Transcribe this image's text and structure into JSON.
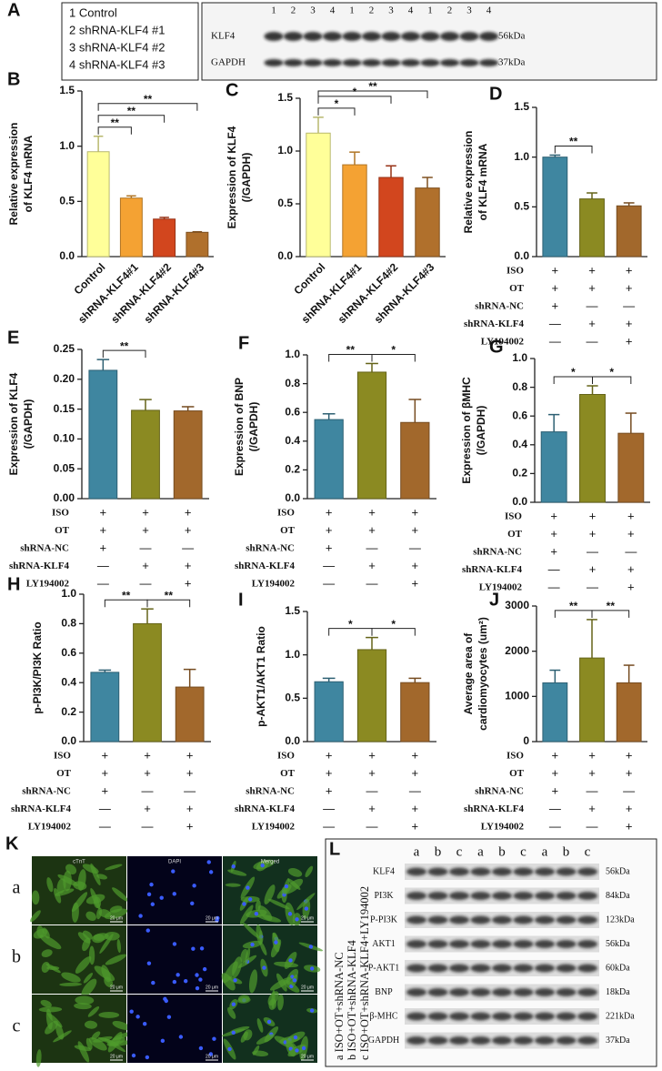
{
  "blot_a": {
    "panel_label": "A",
    "legend": [
      "1 Control",
      "2 shRNA-KLF4 #1",
      "3 shRNA-KLF4 #2",
      "4 shRNA-KLF4 #3"
    ],
    "lanes": [
      "1",
      "2",
      "3",
      "4",
      "1",
      "2",
      "3",
      "4",
      "1",
      "2",
      "3",
      "4"
    ],
    "rows": [
      {
        "name": "KLF4",
        "size": "56kDa"
      },
      {
        "name": "GAPDH",
        "size": "37kDa"
      }
    ]
  },
  "chart_data": [
    {
      "type": "bar",
      "panel_label": "B",
      "ylabel": [
        "Relative expression",
        "of KLF4 mRNA"
      ],
      "categories": [
        "Control",
        "shRNA-KLF4#1",
        "shRNA-KLF4#2",
        "shRNA-KLF4#3"
      ],
      "values": [
        0.95,
        0.53,
        0.34,
        0.22
      ],
      "errors": [
        0.14,
        0.02,
        0.015,
        0.005
      ],
      "colors": [
        "#ffff99",
        "#f4a233",
        "#d2461e",
        "#b0702c"
      ],
      "ylim": [
        0,
        1.5
      ],
      "yticks": [
        {
          "value": 0,
          "label": "0.0"
        },
        0.5,
        {
          "value": 1,
          "label": "1.0"
        },
        1.5
      ],
      "significance": [
        {
          "groups": [
            0,
            1
          ],
          "label": "**"
        },
        {
          "groups": [
            0,
            2
          ],
          "label": "**"
        },
        {
          "groups": [
            0,
            3
          ],
          "label": "**"
        }
      ]
    },
    {
      "type": "bar",
      "panel_label": "C",
      "ylabel": [
        "Expression of KLF4",
        "(/GAPDH)"
      ],
      "categories": [
        "Control",
        "shRNA-KLF4#1",
        "shRNA-KLF4#2",
        "shRNA-KLF4#3"
      ],
      "values": [
        1.17,
        0.87,
        0.75,
        0.65
      ],
      "errors": [
        0.15,
        0.12,
        0.11,
        0.1
      ],
      "colors": [
        "#ffff99",
        "#f4a233",
        "#d2461e",
        "#b0702c"
      ],
      "ylim": [
        0,
        1.5
      ],
      "yticks": [
        {
          "value": 0,
          "label": "0.0"
        },
        0.5,
        {
          "value": 1,
          "label": "1.0"
        },
        1.5
      ],
      "significance": [
        {
          "groups": [
            0,
            1
          ],
          "label": "*"
        },
        {
          "groups": [
            0,
            2
          ],
          "label": "*"
        },
        {
          "groups": [
            0,
            3
          ],
          "label": "**"
        }
      ]
    },
    {
      "type": "bar",
      "panel_label": "D",
      "ylabel": [
        "Relative expression",
        "of KLF4 mRNA"
      ],
      "values": [
        1.0,
        0.58,
        0.51
      ],
      "errors": [
        0.02,
        0.06,
        0.03
      ],
      "colors": [
        "#3f86a0",
        "#8b8a22",
        "#a2682c"
      ],
      "ylim": [
        0,
        1.5
      ],
      "yticks": [
        {
          "value": 0,
          "label": "0.0"
        },
        0.5,
        {
          "value": 1,
          "label": "1.0"
        },
        1.5
      ],
      "significance": [
        {
          "groups": [
            0,
            1
          ],
          "label": "**"
        }
      ],
      "treatments": [
        {
          "name": "ISO",
          "marks": [
            "+",
            "+",
            "+"
          ]
        },
        {
          "name": "OT",
          "marks": [
            "+",
            "+",
            "+"
          ]
        },
        {
          "name": "shRNA-NC",
          "marks": [
            "+",
            "—",
            "—"
          ]
        },
        {
          "name": "shRNA-KLF4",
          "marks": [
            "—",
            "+",
            "+"
          ]
        },
        {
          "name": "LY194002",
          "marks": [
            "—",
            "—",
            "+"
          ]
        }
      ]
    },
    {
      "type": "bar",
      "panel_label": "E",
      "ylabel": [
        "Expression of KLF4",
        "(/GAPDH)"
      ],
      "values": [
        0.215,
        0.148,
        0.147
      ],
      "errors": [
        0.018,
        0.018,
        0.007
      ],
      "colors": [
        "#3f86a0",
        "#8b8a22",
        "#a2682c"
      ],
      "ylim": [
        0,
        0.25
      ],
      "yticks": [
        {
          "value": 0,
          "label": "0.00"
        },
        0.05,
        {
          "value": 0.1,
          "label": "0.10"
        },
        0.15,
        {
          "value": 0.2,
          "label": "0.20"
        },
        0.25
      ],
      "significance": [
        {
          "groups": [
            0,
            1
          ],
          "label": "**"
        }
      ],
      "treatments": [
        {
          "name": "ISO",
          "marks": [
            "+",
            "+",
            "+"
          ]
        },
        {
          "name": "OT",
          "marks": [
            "+",
            "+",
            "+"
          ]
        },
        {
          "name": "shRNA-NC",
          "marks": [
            "+",
            "—",
            "—"
          ]
        },
        {
          "name": "shRNA-KLF4",
          "marks": [
            "—",
            "+",
            "+"
          ]
        },
        {
          "name": "LY194002",
          "marks": [
            "—",
            "—",
            "+"
          ]
        }
      ]
    },
    {
      "type": "bar",
      "panel_label": "F",
      "ylabel": [
        "Expression of BNP",
        "(/GAPDH)"
      ],
      "values": [
        0.55,
        0.88,
        0.53
      ],
      "errors": [
        0.04,
        0.06,
        0.16
      ],
      "colors": [
        "#3f86a0",
        "#8b8a22",
        "#a2682c"
      ],
      "ylim": [
        0,
        1
      ],
      "yticks": [
        {
          "value": 0,
          "label": "0.0"
        },
        0.2,
        0.4,
        0.6,
        0.8,
        {
          "value": 1,
          "label": "1.0"
        }
      ],
      "significance": [
        {
          "groups": [
            0,
            1
          ],
          "label": "**"
        },
        {
          "groups": [
            1,
            2
          ],
          "label": "*"
        }
      ],
      "treatments": [
        {
          "name": "ISO",
          "marks": [
            "+",
            "+",
            "+"
          ]
        },
        {
          "name": "OT",
          "marks": [
            "+",
            "+",
            "+"
          ]
        },
        {
          "name": "shRNA-NC",
          "marks": [
            "+",
            "—",
            "—"
          ]
        },
        {
          "name": "shRNA-KLF4",
          "marks": [
            "—",
            "+",
            "+"
          ]
        },
        {
          "name": "LY194002",
          "marks": [
            "—",
            "—",
            "+"
          ]
        }
      ]
    },
    {
      "type": "bar",
      "panel_label": "G",
      "ylabel": [
        "Expression of βMHC",
        "(/GAPDH)"
      ],
      "values": [
        0.49,
        0.75,
        0.48
      ],
      "errors": [
        0.12,
        0.06,
        0.14
      ],
      "colors": [
        "#3f86a0",
        "#8b8a22",
        "#a2682c"
      ],
      "ylim": [
        0,
        1
      ],
      "yticks": [
        {
          "value": 0,
          "label": "0.0"
        },
        0.2,
        0.4,
        0.6,
        0.8,
        {
          "value": 1,
          "label": "1.0"
        }
      ],
      "significance": [
        {
          "groups": [
            0,
            1
          ],
          "label": "*"
        },
        {
          "groups": [
            1,
            2
          ],
          "label": "*"
        }
      ],
      "treatments": [
        {
          "name": "ISO",
          "marks": [
            "+",
            "+",
            "+"
          ]
        },
        {
          "name": "OT",
          "marks": [
            "+",
            "+",
            "+"
          ]
        },
        {
          "name": "shRNA-NC",
          "marks": [
            "+",
            "—",
            "—"
          ]
        },
        {
          "name": "shRNA-KLF4",
          "marks": [
            "—",
            "+",
            "+"
          ]
        },
        {
          "name": "LY194002",
          "marks": [
            "—",
            "—",
            "+"
          ]
        }
      ]
    },
    {
      "type": "bar",
      "panel_label": "H",
      "ylabel": [
        "p-PI3K/PI3K Ratio"
      ],
      "values": [
        0.47,
        0.8,
        0.37
      ],
      "errors": [
        0.015,
        0.1,
        0.12
      ],
      "colors": [
        "#3f86a0",
        "#8b8a22",
        "#a2682c"
      ],
      "ylim": [
        0,
        1
      ],
      "yticks": [
        {
          "value": 0,
          "label": "0.0"
        },
        0.2,
        0.4,
        0.6,
        0.8,
        {
          "value": 1,
          "label": "1.0"
        }
      ],
      "significance": [
        {
          "groups": [
            0,
            1
          ],
          "label": "**"
        },
        {
          "groups": [
            1,
            2
          ],
          "label": "**"
        }
      ],
      "treatments": [
        {
          "name": "ISO",
          "marks": [
            "+",
            "+",
            "+"
          ]
        },
        {
          "name": "OT",
          "marks": [
            "+",
            "+",
            "+"
          ]
        },
        {
          "name": "shRNA-NC",
          "marks": [
            "+",
            "—",
            "—"
          ]
        },
        {
          "name": "shRNA-KLF4",
          "marks": [
            "—",
            "+",
            "+"
          ]
        },
        {
          "name": "LY194002",
          "marks": [
            "—",
            "—",
            "+"
          ]
        }
      ]
    },
    {
      "type": "bar",
      "panel_label": "I",
      "ylabel": [
        "p-AKT1/AKT1 Ratio"
      ],
      "values": [
        0.69,
        1.06,
        0.68
      ],
      "errors": [
        0.04,
        0.14,
        0.05
      ],
      "colors": [
        "#3f86a0",
        "#8b8a22",
        "#a2682c"
      ],
      "ylim": [
        0,
        1.5
      ],
      "yticks": [
        {
          "value": 0,
          "label": "0.0"
        },
        0.5,
        {
          "value": 1,
          "label": "1.0"
        },
        1.5
      ],
      "significance": [
        {
          "groups": [
            0,
            1
          ],
          "label": "*"
        },
        {
          "groups": [
            1,
            2
          ],
          "label": "*"
        }
      ],
      "treatments": [
        {
          "name": "ISO",
          "marks": [
            "+",
            "+",
            "+"
          ]
        },
        {
          "name": "OT",
          "marks": [
            "+",
            "+",
            "+"
          ]
        },
        {
          "name": "shRNA-NC",
          "marks": [
            "+",
            "—",
            "—"
          ]
        },
        {
          "name": "shRNA-KLF4",
          "marks": [
            "—",
            "+",
            "+"
          ]
        },
        {
          "name": "LY194002",
          "marks": [
            "—",
            "—",
            "+"
          ]
        }
      ]
    },
    {
      "type": "bar",
      "panel_label": "J",
      "ylabel": [
        "Average area of",
        "cardiomyocytes (um²)"
      ],
      "values": [
        1300,
        1850,
        1300
      ],
      "errors": [
        280,
        850,
        390
      ],
      "colors": [
        "#3f86a0",
        "#8b8a22",
        "#a2682c"
      ],
      "ylim": [
        0,
        3000
      ],
      "yticks": [
        0,
        1000,
        2000,
        3000
      ],
      "significance": [
        {
          "groups": [
            0,
            1
          ],
          "label": "**"
        },
        {
          "groups": [
            1,
            2
          ],
          "label": "**"
        }
      ],
      "treatments": [
        {
          "name": "ISO",
          "marks": [
            "+",
            "+",
            "+"
          ]
        },
        {
          "name": "OT",
          "marks": [
            "+",
            "+",
            "+"
          ]
        },
        {
          "name": "shRNA-NC",
          "marks": [
            "+",
            "—",
            "—"
          ]
        },
        {
          "name": "shRNA-KLF4",
          "marks": [
            "—",
            "+",
            "+"
          ]
        },
        {
          "name": "LY194002",
          "marks": [
            "—",
            "—",
            "+"
          ]
        }
      ]
    }
  ],
  "panel_k": {
    "panel_label": "K",
    "columns": [
      "cTnT",
      "DAPI",
      "Merged"
    ],
    "rows": [
      "a",
      "b",
      "c"
    ],
    "scale_bar": "20 μm"
  },
  "blot_l": {
    "panel_label": "L",
    "legend": [
      "a ISO+OT+shRNA-NC",
      "b ISO+OT+shRNA-KLF4",
      "c ISO+OT+shRNA-KLF4+LY194002"
    ],
    "lanes": [
      "a",
      "b",
      "c",
      "a",
      "b",
      "c",
      "a",
      "b",
      "c"
    ],
    "rows": [
      {
        "name": "KLF4",
        "size": "56kDa"
      },
      {
        "name": "PI3K",
        "size": "84kDa"
      },
      {
        "name": "P-PI3K",
        "size": "123kDa"
      },
      {
        "name": "AKT1",
        "size": "56kDa"
      },
      {
        "name": "P-AKT1",
        "size": "60kDa"
      },
      {
        "name": "BNP",
        "size": "18kDa"
      },
      {
        "name": "β-MHC",
        "size": "221kDa"
      },
      {
        "name": "GAPDH",
        "size": "37kDa"
      }
    ]
  }
}
